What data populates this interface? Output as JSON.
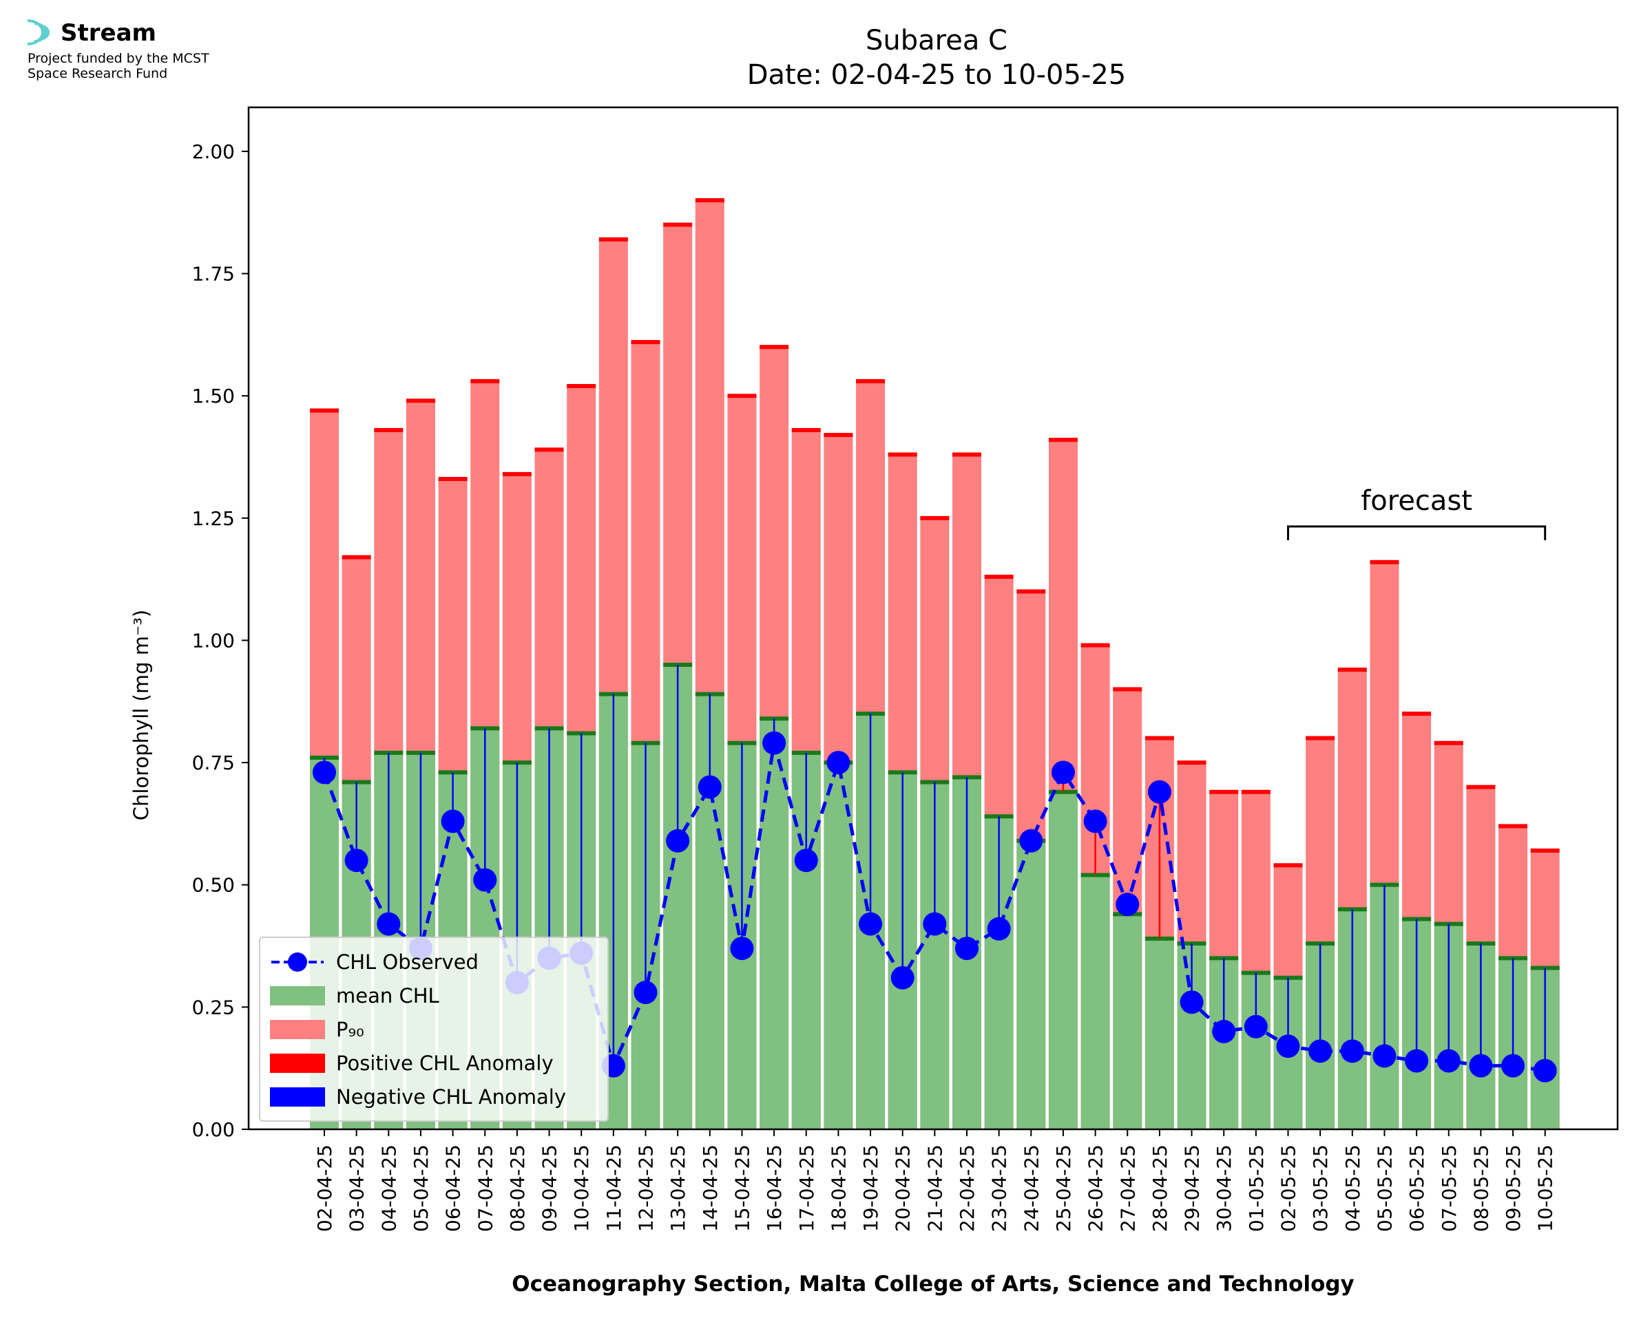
{
  "logo": {
    "brand": "Stream",
    "subtitle_line1": "Project funded by the MCST",
    "subtitle_line2": "Space Research Fund",
    "logo_color": "#5fcfcf"
  },
  "footer": "Oceanography Section, Malta College of Arts, Science and Technology",
  "chart_data": {
    "type": "bar",
    "title": "Subarea C",
    "subtitle": "Date: 02-04-25 to 10-05-25",
    "ylabel": "Chlorophyll (mg m⁻³)",
    "xlabel": "",
    "ylim": [
      0,
      2.09
    ],
    "yticks": [
      "0.00",
      "0.25",
      "0.50",
      "0.75",
      "1.00",
      "1.25",
      "1.50",
      "1.75",
      "2.00"
    ],
    "categories": [
      "02-04-25",
      "03-04-25",
      "04-04-25",
      "05-04-25",
      "06-04-25",
      "07-04-25",
      "08-04-25",
      "09-04-25",
      "10-04-25",
      "11-04-25",
      "12-04-25",
      "13-04-25",
      "14-04-25",
      "15-04-25",
      "16-04-25",
      "17-04-25",
      "18-04-25",
      "19-04-25",
      "20-04-25",
      "21-04-25",
      "22-04-25",
      "23-04-25",
      "24-04-25",
      "25-04-25",
      "26-04-25",
      "27-04-25",
      "28-04-25",
      "29-04-25",
      "30-04-25",
      "01-05-25",
      "02-05-25",
      "03-05-25",
      "04-05-25",
      "05-05-25",
      "06-05-25",
      "07-05-25",
      "08-05-25",
      "09-05-25",
      "10-05-25"
    ],
    "series": [
      {
        "name": "CHL Observed",
        "color": "#0000ff",
        "values": [
          0.73,
          0.55,
          0.42,
          0.37,
          0.63,
          0.51,
          0.3,
          0.35,
          0.36,
          0.13,
          0.28,
          0.59,
          0.7,
          0.37,
          0.79,
          0.55,
          0.75,
          0.42,
          0.31,
          0.42,
          0.37,
          0.41,
          0.59,
          0.73,
          0.63,
          0.46,
          0.69,
          0.26,
          0.2,
          0.21,
          0.17,
          0.16,
          0.16,
          0.15,
          0.14,
          0.14,
          0.13,
          0.13,
          0.12
        ]
      },
      {
        "name": "mean CHL",
        "color": "#80c080",
        "values": [
          0.76,
          0.71,
          0.77,
          0.77,
          0.73,
          0.82,
          0.75,
          0.82,
          0.81,
          0.89,
          0.79,
          0.95,
          0.89,
          0.79,
          0.84,
          0.77,
          0.75,
          0.85,
          0.73,
          0.71,
          0.72,
          0.64,
          0.59,
          0.69,
          0.52,
          0.44,
          0.39,
          0.38,
          0.35,
          0.32,
          0.31,
          0.38,
          0.45,
          0.5,
          0.43,
          0.42,
          0.38,
          0.35,
          0.33
        ]
      },
      {
        "name": "P₉₀",
        "color": "#ff8080",
        "values": [
          1.47,
          1.17,
          1.43,
          1.49,
          1.33,
          1.53,
          1.34,
          1.39,
          1.52,
          1.82,
          1.61,
          1.85,
          1.9,
          1.5,
          1.6,
          1.43,
          1.42,
          1.53,
          1.38,
          1.25,
          1.38,
          1.13,
          1.1,
          1.41,
          0.99,
          0.9,
          0.8,
          0.75,
          0.69,
          0.69,
          0.54,
          0.8,
          0.94,
          1.16,
          0.85,
          0.79,
          0.7,
          0.62,
          0.57
        ]
      },
      {
        "name": "Positive CHL Anomaly",
        "color": "#ff0000"
      },
      {
        "name": "Negative CHL Anomaly",
        "color": "#0000ff"
      }
    ],
    "forecast": {
      "label": "forecast",
      "start": "02-05-25",
      "end": "10-05-25"
    },
    "legend": "lower-left",
    "grid": false
  }
}
